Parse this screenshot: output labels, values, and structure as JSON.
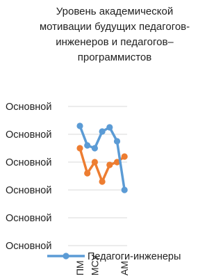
{
  "chart_data": {
    "type": "line",
    "title_lines": [
      "Уровень академической",
      "мотивации будущих педагогов-",
      "инженеров и педагогов–",
      "программистов"
    ],
    "y_tick_labels": [
      "Основной",
      "Основной",
      "Основной",
      "Основной",
      "Основной",
      "Основной"
    ],
    "y_range": [
      0,
      5
    ],
    "categories": [
      "ПМ",
      "",
      "МСУ",
      "",
      "",
      "",
      "АМ"
    ],
    "grid": true,
    "legend_position": "bottom",
    "series": [
      {
        "name": "Педагоги-инженеры",
        "color": "#5b9bd5",
        "values": [
          4.3,
          3.6,
          3.5,
          4.1,
          4.25,
          3.75,
          2.0
        ]
      },
      {
        "name": "",
        "color": "#ed7d31",
        "values": [
          3.5,
          2.6,
          3.0,
          2.3,
          2.9,
          3.0,
          3.2
        ]
      }
    ]
  }
}
